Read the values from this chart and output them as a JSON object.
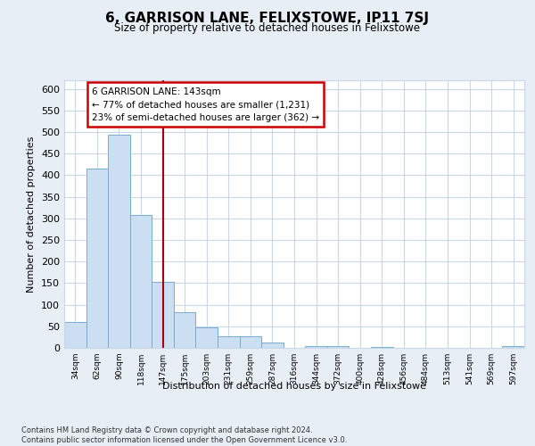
{
  "title": "6, GARRISON LANE, FELIXSTOWE, IP11 7SJ",
  "subtitle": "Size of property relative to detached houses in Felixstowe",
  "bar_labels": [
    "34sqm",
    "62sqm",
    "90sqm",
    "118sqm",
    "147sqm",
    "175sqm",
    "203sqm",
    "231sqm",
    "259sqm",
    "287sqm",
    "316sqm",
    "344sqm",
    "372sqm",
    "400sqm",
    "428sqm",
    "456sqm",
    "484sqm",
    "513sqm",
    "541sqm",
    "569sqm",
    "597sqm"
  ],
  "bar_values": [
    60,
    415,
    493,
    308,
    152,
    83,
    47,
    27,
    27,
    12,
    0,
    5,
    5,
    0,
    3,
    0,
    0,
    0,
    0,
    0,
    4
  ],
  "bar_color": "#ccdff2",
  "bar_edge_color": "#7aaacc",
  "ylim": [
    0,
    620
  ],
  "yticks": [
    0,
    50,
    100,
    150,
    200,
    250,
    300,
    350,
    400,
    450,
    500,
    550,
    600
  ],
  "ylabel": "Number of detached properties",
  "xlabel": "Distribution of detached houses by size in Felixstowe",
  "vline_x_index": 4,
  "vline_color": "#aa0000",
  "annotation_title": "6 GARRISON LANE: 143sqm",
  "annotation_line1": "← 77% of detached houses are smaller (1,231)",
  "annotation_line2": "23% of semi-detached houses are larger (362) →",
  "annotation_box_color": "#ffffff",
  "annotation_box_edge": "#cc0000",
  "grid_color": "#c8d8e8",
  "footer_line1": "Contains HM Land Registry data © Crown copyright and database right 2024.",
  "footer_line2": "Contains public sector information licensed under the Open Government Licence v3.0.",
  "bg_color": "#e8eef5",
  "plot_bg_color": "#ffffff"
}
